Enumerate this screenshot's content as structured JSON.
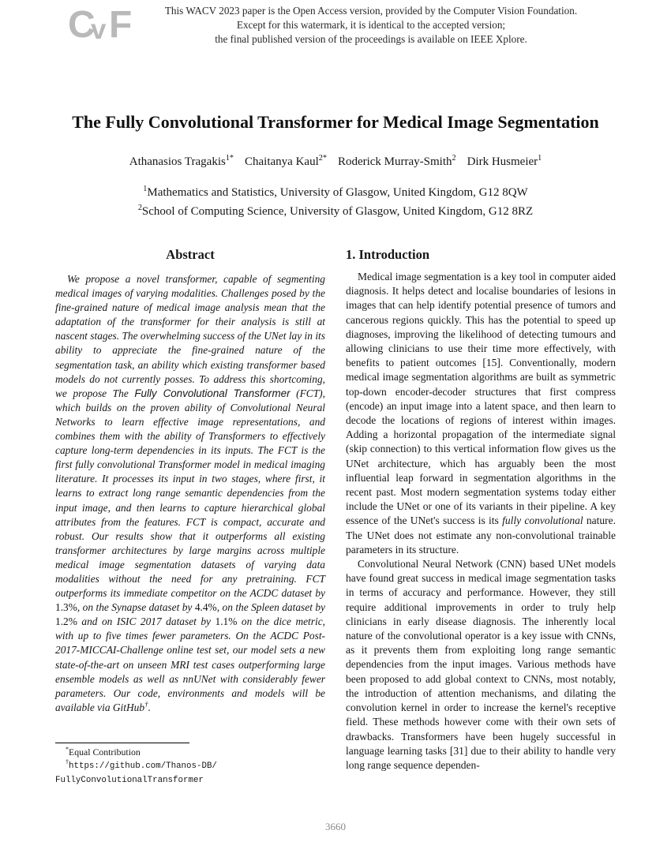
{
  "watermark": {
    "logo_letters": [
      "C",
      "v",
      "F"
    ],
    "lines": [
      "This WACV 2023 paper is the Open Access version, provided by the Computer Vision Foundation.",
      "Except for this watermark, it is identical to the accepted version;",
      "the final published version of the proceedings is available on IEEE Xplore."
    ]
  },
  "title": "The Fully Convolutional Transformer for Medical Image Segmentation",
  "authors": [
    {
      "name": "Athanasios Tragakis",
      "sup": "1*"
    },
    {
      "name": "Chaitanya Kaul",
      "sup": "2*"
    },
    {
      "name": "Roderick Murray-Smith",
      "sup": "2"
    },
    {
      "name": "Dirk Husmeier",
      "sup": "1"
    }
  ],
  "affiliations": [
    {
      "sup": "1",
      "text": "Mathematics and Statistics, University of Glasgow, United Kingdom, G12 8QW"
    },
    {
      "sup": "2",
      "text": "School of Computing Science, University of Glasgow, United Kingdom, G12 8RZ"
    }
  ],
  "abstract": {
    "heading": "Abstract",
    "segments": [
      {
        "t": "We propose a novel transformer, capable of segmenting medical images of varying modalities. Challenges posed by the fine-grained nature of medical image analysis mean that the adaptation of the transformer for their analysis is still at nascent stages. The overwhelming success of the UNet lay in its ability to appreciate the fine-grained nature of the segmentation task, an ability which existing transformer based models do not currently posses. To address this shortcoming, we propose The "
      },
      {
        "t": "Fully Convolutional Transformer",
        "s": "sans"
      },
      {
        "t": " (FCT), which builds on the proven ability of Convolutional Neural Networks to learn effective image representations, and combines them with the ability of Transformers to effectively capture long-term dependencies in its inputs. The FCT is the first fully convolutional Transformer model in medical imaging literature. It processes its input in two stages, where first, it learns to extract long range semantic dependencies from the input image, and then learns to capture hierarchical global attributes from the features. FCT is compact, accurate and robust. Our results show that it outperforms all existing transformer architectures by large margins across multiple medical image segmentation datasets of varying data modalities without the need for any pretraining. FCT outperforms its immediate competitor on the ACDC dataset by "
      },
      {
        "t": "1.3%",
        "s": "rm"
      },
      {
        "t": ", on the Synapse dataset by "
      },
      {
        "t": "4.4%",
        "s": "rm"
      },
      {
        "t": ", on the Spleen dataset by "
      },
      {
        "t": "1.2%",
        "s": "rm"
      },
      {
        "t": " and on ISIC 2017 dataset by "
      },
      {
        "t": "1.1%",
        "s": "rm"
      },
      {
        "t": " on the dice metric, with up to five times fewer parameters. On the ACDC Post-2017-MICCAI-Challenge online test set, our model sets a new state-of-the-art on unseen MRI test cases outperforming large ensemble models as well as nnUNet with considerably fewer parameters. Our code, environments and models will be available via GitHub"
      },
      {
        "t": "†",
        "s": "sup"
      },
      {
        "t": "."
      }
    ]
  },
  "introduction": {
    "heading": "1. Introduction",
    "paragraphs": {
      "p1": [
        {
          "t": "Medical image segmentation is a key tool in computer aided diagnosis. It helps detect and localise boundaries of lesions in images that can help identify potential presence of tumors and cancerous regions quickly. This has the potential to speed up diagnoses, improving the likelihood of detecting tumours and allowing clinicians to use their time more effectively, with benefits to patient outcomes [15]. Conventionally, modern medical image segmentation algorithms are built as symmetric top-down encoder-decoder structures that first compress (encode) an input image into a latent space, and then learn to decode the locations of regions of interest within images. Adding a horizontal propagation of the intermediate signal (skip connection) to this vertical information flow gives us the UNet architecture, which has arguably been the most influential leap forward in segmentation algorithms in the recent past. Most modern segmentation systems today either include the UNet or one of its variants in their pipeline. A key essence of the UNet's success is its "
        },
        {
          "t": "fully convolutional",
          "s": "i"
        },
        {
          "t": " nature. The UNet does not estimate any non-convolutional trainable parameters in its structure."
        }
      ],
      "p2": [
        {
          "t": "Convolutional Neural Network (CNN) based UNet models have found great success in medical image segmentation tasks in terms of accuracy and performance. However, they still require additional improvements in order to truly help clinicians in early disease diagnosis. The inherently local nature of the convolutional operator is a key issue with CNNs, as it prevents them from exploiting long range semantic dependencies from the input images. Various methods have been proposed to add global context to CNNs, most notably, the introduction of attention mechanisms, and dilating the convolution kernel in order to increase the kernel's receptive field. These methods however come with their own sets of drawbacks. Transformers have been hugely successful in language learning tasks [31] due to their ability to handle very long range sequence dependen-"
        }
      ]
    }
  },
  "footnotes": {
    "equal_sup": "*",
    "equal_text": "Equal Contribution",
    "url_sup": "†",
    "url_line1": "https://github.com/Thanos-DB/",
    "url_line2": "FullyConvolutionalTransformer"
  },
  "page_number": "3660"
}
